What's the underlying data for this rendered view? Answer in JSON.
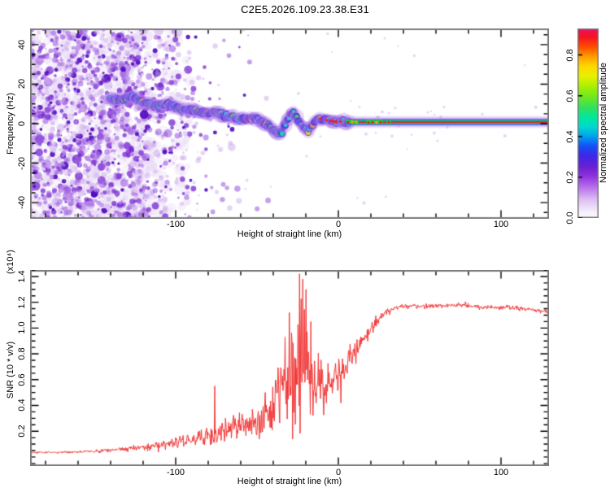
{
  "title": "C2E5.2026.109.23.38.E31",
  "frame_color": "#7d7d7d",
  "tick_color": "#000000",
  "chart_data": [
    {
      "type": "heatmap",
      "name": "spectrogram",
      "xlabel": "Height of straight line (km)",
      "ylabel": "Frequency (Hz)",
      "xlim": [
        -189.5,
        129.5
      ],
      "ylim": [
        -48.2,
        48.2
      ],
      "x_major_ticks": [
        -100,
        0,
        100
      ],
      "x_tick_labels": [
        "-100",
        "0",
        "100"
      ],
      "x_minor_step": 20,
      "y_major_ticks": [
        40,
        20,
        0,
        -20,
        -40
      ],
      "y_tick_labels": [
        "40",
        "20",
        "0",
        "-20",
        "-40"
      ],
      "y_minor_step": 5,
      "colorbar": {
        "label": "Normalized spectral amplitude",
        "tick_values": [
          0.0,
          0.2,
          0.4,
          0.6,
          0.8
        ],
        "tick_labels": [
          "0.0",
          "0.2",
          "0.4",
          "0.6",
          "0.8"
        ],
        "vmax": 0.93,
        "gradient": [
          [
            0.0,
            "#ffffff"
          ],
          [
            0.04,
            "#f3eafb"
          ],
          [
            0.1,
            "#dcbcf3"
          ],
          [
            0.16,
            "#b873eb"
          ],
          [
            0.22,
            "#9132e0"
          ],
          [
            0.27,
            "#6a20d2"
          ],
          [
            0.33,
            "#3c28e8"
          ],
          [
            0.38,
            "#1550f5"
          ],
          [
            0.43,
            "#00a0f0"
          ],
          [
            0.48,
            "#00d8d0"
          ],
          [
            0.53,
            "#00e8a0"
          ],
          [
            0.58,
            "#30e060"
          ],
          [
            0.64,
            "#70e820"
          ],
          [
            0.7,
            "#b0f000"
          ],
          [
            0.75,
            "#e8f000"
          ],
          [
            0.8,
            "#ffd800"
          ],
          [
            0.85,
            "#ffa000"
          ],
          [
            0.9,
            "#ff5000"
          ],
          [
            0.955,
            "#f51420"
          ],
          [
            1.0,
            "#ec1066"
          ]
        ]
      },
      "noise": {
        "seed": 20260109,
        "haze_attempts": 700,
        "speckle_attempts": 3000,
        "km_range": [
          -189.5,
          -40
        ],
        "dense_until": -118
      },
      "ridge_points": [
        [
          -141,
          13
        ],
        [
          -134,
          12
        ],
        [
          -127,
          14
        ],
        [
          -120,
          11
        ],
        [
          -113,
          9
        ],
        [
          -106,
          10
        ],
        [
          -100,
          8
        ],
        [
          -94,
          6.5
        ],
        [
          -88,
          7
        ],
        [
          -82,
          5
        ],
        [
          -76,
          6
        ],
        [
          -70,
          4
        ],
        [
          -64,
          3
        ],
        [
          -58,
          2
        ],
        [
          -52,
          3
        ],
        [
          -47,
          1
        ],
        [
          -43,
          -1
        ],
        [
          -39,
          -4
        ],
        [
          -35,
          -5
        ],
        [
          -31,
          3
        ],
        [
          -28,
          6
        ],
        [
          -25,
          2
        ],
        [
          -22,
          -2
        ],
        [
          -19,
          -4
        ],
        [
          -16,
          -1
        ],
        [
          -13,
          2
        ],
        [
          -10,
          2.5
        ],
        [
          -6,
          1.5
        ],
        [
          -2,
          1
        ],
        [
          2,
          1
        ],
        [
          7,
          0.8
        ]
      ],
      "stripe": {
        "km_start": 5,
        "km_end": 129.5,
        "center_hz": 0.8
      }
    },
    {
      "type": "line",
      "name": "snr",
      "xlabel": "Height of straight line (km)",
      "ylabel": "SNR (10 * v/v)",
      "scale_label": "(x10⁴)",
      "xlim": [
        -189.5,
        129.5
      ],
      "ylim": [
        -0.07,
        1.45
      ],
      "x_major_ticks": [
        -100,
        0,
        100
      ],
      "x_tick_labels": [
        "-100",
        "0",
        "100"
      ],
      "x_minor_step": 20,
      "y_major_ticks": [
        1.4,
        1.2,
        1.0,
        0.8,
        0.6,
        0.4,
        0.2
      ],
      "y_tick_labels": [
        "1.4",
        "1.2",
        "1.0",
        "0.8",
        "0.6",
        "0.4",
        "0.2"
      ],
      "y_minor_step": 0.05,
      "line_color": "#f23535",
      "seed": 424242,
      "step_km": 0.33,
      "envelope": [
        [
          -189.5,
          0.035,
          0.012
        ],
        [
          -165,
          0.038,
          0.014
        ],
        [
          -148,
          0.045,
          0.02
        ],
        [
          -136,
          0.055,
          0.035
        ],
        [
          -126,
          0.07,
          0.05
        ],
        [
          -116,
          0.085,
          0.065
        ],
        [
          -106,
          0.1,
          0.08
        ],
        [
          -97,
          0.12,
          0.1
        ],
        [
          -88,
          0.14,
          0.12
        ],
        [
          -80,
          0.16,
          0.16
        ],
        [
          -72,
          0.18,
          0.18
        ],
        [
          -64,
          0.21,
          0.2
        ],
        [
          -57,
          0.24,
          0.2
        ],
        [
          -50,
          0.28,
          0.22
        ],
        [
          -44,
          0.32,
          0.35
        ],
        [
          -38,
          0.45,
          0.55
        ],
        [
          -32,
          0.55,
          0.7
        ],
        [
          -27,
          0.62,
          0.95
        ],
        [
          -22,
          0.72,
          1.1
        ],
        [
          -18,
          0.62,
          0.8
        ],
        [
          -14,
          0.52,
          0.45
        ],
        [
          -10,
          0.55,
          0.38
        ],
        [
          -6,
          0.6,
          0.3
        ],
        [
          -2,
          0.62,
          0.28
        ],
        [
          2,
          0.66,
          0.25
        ],
        [
          6,
          0.72,
          0.22
        ],
        [
          10,
          0.8,
          0.2
        ],
        [
          14,
          0.88,
          0.16
        ],
        [
          18,
          0.96,
          0.13
        ],
        [
          22,
          1.03,
          0.1
        ],
        [
          26,
          1.09,
          0.07
        ],
        [
          30,
          1.13,
          0.05
        ],
        [
          36,
          1.16,
          0.04
        ],
        [
          45,
          1.17,
          0.038
        ],
        [
          60,
          1.17,
          0.036
        ],
        [
          75,
          1.18,
          0.036
        ],
        [
          90,
          1.16,
          0.036
        ],
        [
          105,
          1.16,
          0.036
        ],
        [
          120,
          1.14,
          0.034
        ],
        [
          129.5,
          1.13,
          0.03
        ]
      ],
      "spikes": [
        [
          -76,
          0.55
        ],
        [
          -30,
          1.12
        ],
        [
          -24,
          1.42
        ],
        [
          -22,
          1.38
        ],
        [
          -20,
          1.3
        ],
        [
          -17,
          1.05
        ]
      ]
    }
  ]
}
